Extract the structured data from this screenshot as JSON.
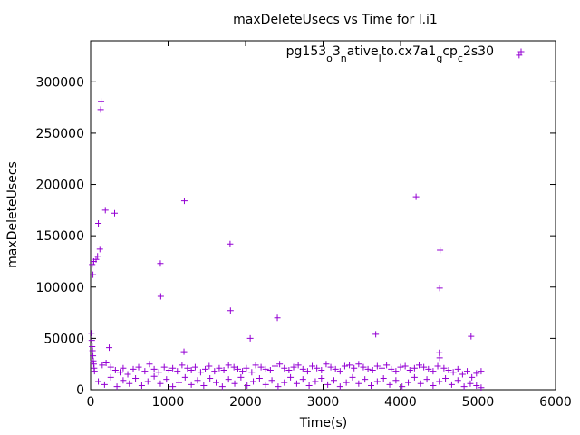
{
  "chart_data": {
    "type": "scatter",
    "title": "maxDeleteUsecs vs Time for l.i1",
    "xlabel": "Time(s)",
    "ylabel": "maxDeleteUsecs",
    "xlim": [
      0,
      6000
    ],
    "ylim": [
      0,
      340000
    ],
    "xticks": [
      0,
      1000,
      2000,
      3000,
      4000,
      5000,
      6000
    ],
    "yticks": [
      0,
      50000,
      100000,
      150000,
      200000,
      250000,
      300000
    ],
    "grid": false,
    "legend_position": "top-right",
    "marker": "+",
    "series": [
      {
        "name": "pg153_o3_native_lto.cx7a1_gcp_c2s30",
        "color": "#9400d3",
        "points": [
          [
            10,
            55000
          ],
          [
            15,
            48000
          ],
          [
            20,
            42000
          ],
          [
            25,
            38000
          ],
          [
            30,
            33000
          ],
          [
            35,
            28000
          ],
          [
            40,
            25000
          ],
          [
            45,
            21000
          ],
          [
            50,
            18000
          ],
          [
            20,
            122000
          ],
          [
            30,
            112000
          ],
          [
            40,
            125000
          ],
          [
            70,
            127000
          ],
          [
            90,
            130000
          ],
          [
            100,
            162000
          ],
          [
            120,
            137000
          ],
          [
            130,
            273000
          ],
          [
            135,
            281000
          ],
          [
            190,
            175000
          ],
          [
            240,
            41000
          ],
          [
            310,
            172000
          ],
          [
            900,
            123000
          ],
          [
            905,
            91000
          ],
          [
            1210,
            184000
          ],
          [
            1205,
            37000
          ],
          [
            1800,
            142000
          ],
          [
            1805,
            77000
          ],
          [
            2060,
            50000
          ],
          [
            2410,
            70000
          ],
          [
            3680,
            54000
          ],
          [
            4200,
            188000
          ],
          [
            4510,
            136000
          ],
          [
            4505,
            99000
          ],
          [
            4500,
            36000
          ],
          [
            4505,
            31000
          ],
          [
            4910,
            52000
          ],
          [
            150,
            24000
          ],
          [
            200,
            26000
          ],
          [
            260,
            22000
          ],
          [
            320,
            19000
          ],
          [
            380,
            17000
          ],
          [
            420,
            21000
          ],
          [
            480,
            15000
          ],
          [
            550,
            20000
          ],
          [
            620,
            22000
          ],
          [
            700,
            18000
          ],
          [
            760,
            25000
          ],
          [
            820,
            20000
          ],
          [
            880,
            17000
          ],
          [
            950,
            22000
          ],
          [
            1010,
            19000
          ],
          [
            1060,
            21000
          ],
          [
            1120,
            18000
          ],
          [
            1180,
            24000
          ],
          [
            1250,
            21000
          ],
          [
            1300,
            19000
          ],
          [
            1350,
            22000
          ],
          [
            1420,
            17000
          ],
          [
            1480,
            20000
          ],
          [
            1530,
            23000
          ],
          [
            1600,
            18000
          ],
          [
            1660,
            21000
          ],
          [
            1720,
            19000
          ],
          [
            1780,
            24000
          ],
          [
            1850,
            22000
          ],
          [
            1900,
            20000
          ],
          [
            1960,
            18000
          ],
          [
            2010,
            21000
          ],
          [
            2080,
            17000
          ],
          [
            2130,
            24000
          ],
          [
            2200,
            22000
          ],
          [
            2260,
            20000
          ],
          [
            2320,
            19000
          ],
          [
            2380,
            23000
          ],
          [
            2440,
            25000
          ],
          [
            2500,
            21000
          ],
          [
            2560,
            19000
          ],
          [
            2620,
            22000
          ],
          [
            2680,
            24000
          ],
          [
            2740,
            20000
          ],
          [
            2800,
            18000
          ],
          [
            2860,
            23000
          ],
          [
            2920,
            21000
          ],
          [
            2980,
            19000
          ],
          [
            3040,
            25000
          ],
          [
            3100,
            22000
          ],
          [
            3160,
            20000
          ],
          [
            3220,
            18000
          ],
          [
            3280,
            23000
          ],
          [
            3340,
            24000
          ],
          [
            3400,
            21000
          ],
          [
            3460,
            25000
          ],
          [
            3520,
            22000
          ],
          [
            3580,
            20000
          ],
          [
            3640,
            19000
          ],
          [
            3700,
            23000
          ],
          [
            3760,
            21000
          ],
          [
            3820,
            24000
          ],
          [
            3880,
            20000
          ],
          [
            3940,
            18000
          ],
          [
            4000,
            22000
          ],
          [
            4060,
            23000
          ],
          [
            4120,
            19000
          ],
          [
            4180,
            21000
          ],
          [
            4240,
            24000
          ],
          [
            4300,
            22000
          ],
          [
            4360,
            20000
          ],
          [
            4420,
            18000
          ],
          [
            4480,
            23000
          ],
          [
            4560,
            21000
          ],
          [
            4620,
            19000
          ],
          [
            4680,
            17000
          ],
          [
            4740,
            20000
          ],
          [
            4800,
            15000
          ],
          [
            4860,
            18000
          ],
          [
            4920,
            12000
          ],
          [
            4980,
            16000
          ],
          [
            5040,
            18000
          ],
          [
            100,
            8000
          ],
          [
            180,
            5000
          ],
          [
            260,
            12000
          ],
          [
            340,
            3000
          ],
          [
            420,
            9000
          ],
          [
            500,
            6000
          ],
          [
            580,
            11000
          ],
          [
            660,
            4000
          ],
          [
            740,
            8000
          ],
          [
            820,
            13000
          ],
          [
            900,
            6000
          ],
          [
            980,
            10000
          ],
          [
            1060,
            3000
          ],
          [
            1140,
            7000
          ],
          [
            1220,
            12000
          ],
          [
            1300,
            5000
          ],
          [
            1380,
            9000
          ],
          [
            1460,
            4000
          ],
          [
            1540,
            11000
          ],
          [
            1620,
            7000
          ],
          [
            1700,
            3000
          ],
          [
            1780,
            10000
          ],
          [
            1860,
            6000
          ],
          [
            1940,
            12000
          ],
          [
            2020,
            4000
          ],
          [
            2100,
            8000
          ],
          [
            2180,
            11000
          ],
          [
            2260,
            5000
          ],
          [
            2340,
            9000
          ],
          [
            2420,
            3000
          ],
          [
            2500,
            7000
          ],
          [
            2580,
            12000
          ],
          [
            2660,
            6000
          ],
          [
            2740,
            10000
          ],
          [
            2820,
            4000
          ],
          [
            2900,
            8000
          ],
          [
            2980,
            11000
          ],
          [
            3060,
            5000
          ],
          [
            3140,
            9000
          ],
          [
            3220,
            3000
          ],
          [
            3300,
            7000
          ],
          [
            3380,
            12000
          ],
          [
            3460,
            6000
          ],
          [
            3540,
            10000
          ],
          [
            3620,
            4000
          ],
          [
            3700,
            8000
          ],
          [
            3780,
            11000
          ],
          [
            3860,
            5000
          ],
          [
            3940,
            9000
          ],
          [
            4020,
            3000
          ],
          [
            4100,
            7000
          ],
          [
            4180,
            12000
          ],
          [
            4260,
            6000
          ],
          [
            4340,
            10000
          ],
          [
            4420,
            4000
          ],
          [
            4500,
            8000
          ],
          [
            4580,
            11000
          ],
          [
            4660,
            5000
          ],
          [
            4740,
            9000
          ],
          [
            4820,
            3000
          ],
          [
            4900,
            6000
          ],
          [
            4980,
            4000
          ],
          [
            5040,
            2000
          ],
          [
            5530,
            326000
          ]
        ]
      }
    ]
  }
}
